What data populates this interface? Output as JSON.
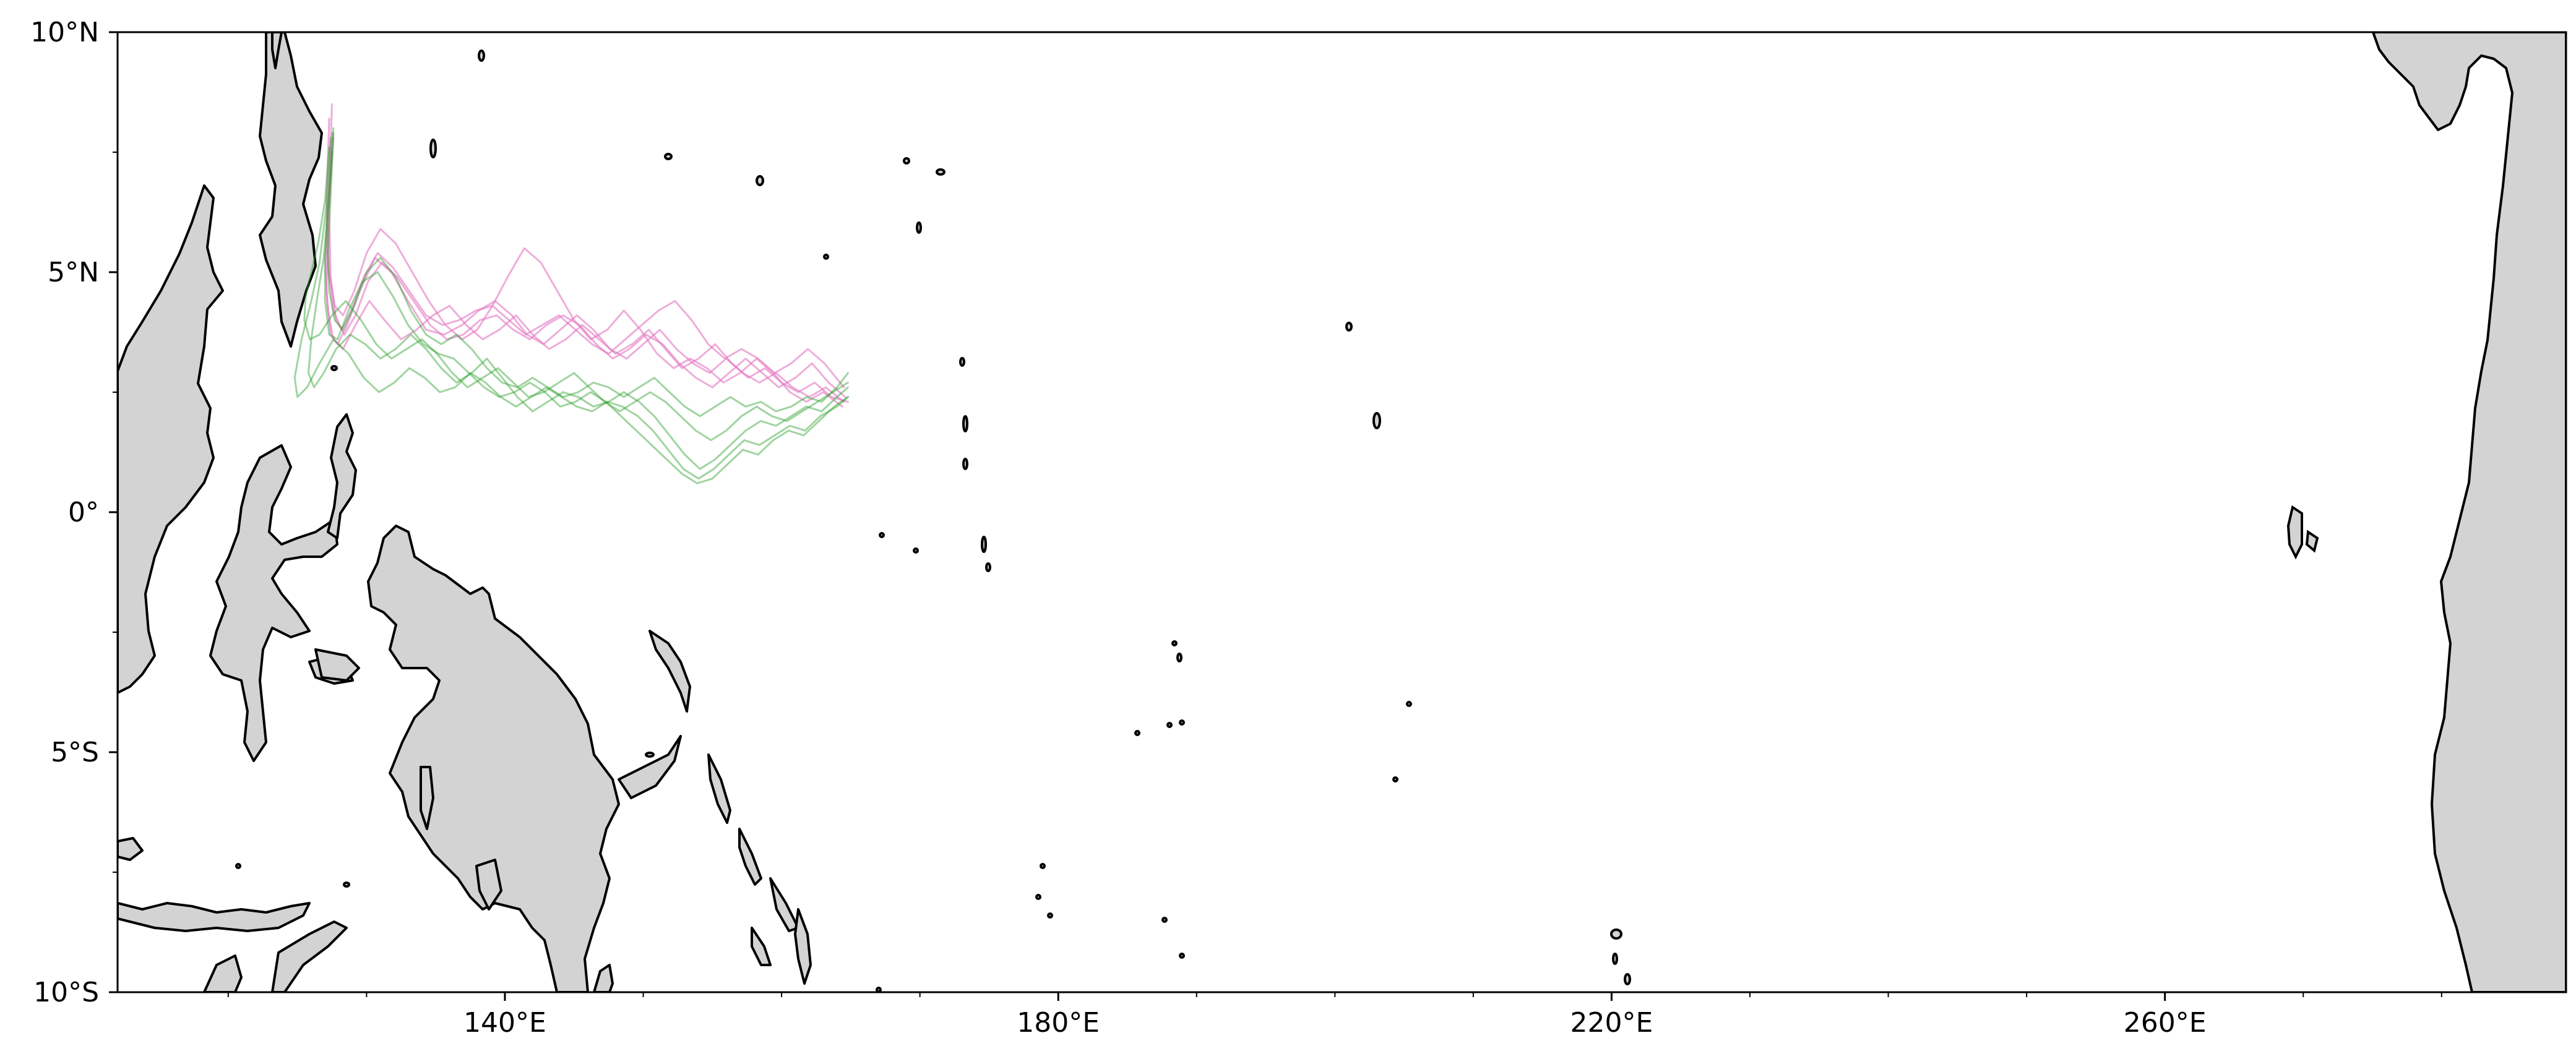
{
  "map": {
    "projection": "PlateCarree",
    "lon_range": [
      112,
      289
    ],
    "lat_range": [
      -10,
      10
    ],
    "land_color": "#d3d3d3",
    "coastline_color": "#000000",
    "background_color": "#ffffff",
    "x_ticks": [
      {
        "lon": 140,
        "label": "140°E"
      },
      {
        "lon": 180,
        "label": "180°E"
      },
      {
        "lon": 220,
        "label": "220°E"
      },
      {
        "lon": 260,
        "label": "260°E"
      }
    ],
    "x_minor_ticks": [
      120,
      130,
      150,
      160,
      170,
      190,
      200,
      210,
      230,
      240,
      250,
      270,
      280
    ],
    "y_ticks": [
      {
        "lat": 10,
        "label": "10°N"
      },
      {
        "lat": 5,
        "label": "5°N"
      },
      {
        "lat": 0,
        "label": "0°"
      },
      {
        "lat": -5,
        "label": "5°S"
      },
      {
        "lat": -10,
        "label": "10°S"
      }
    ],
    "y_minor_ticks": [
      7.5,
      2.5,
      -2.5,
      -7.5
    ]
  },
  "chart_data": {
    "type": "line",
    "series": [
      {
        "color": "#e377c2",
        "opacity": 0.6,
        "lon": [
          127.5,
          127.3,
          127.0,
          127.2,
          127.6,
          128.3,
          129.2,
          130.2,
          131.3,
          132.5,
          133.6,
          134.8,
          136.0,
          137.2,
          138.4,
          139.6,
          140.8,
          142.0,
          143.2,
          144.4,
          145.6,
          146.8,
          148.0,
          149.2,
          150.4,
          151.6,
          152.8,
          154.0,
          155.2,
          156.4,
          157.6,
          158.8,
          160.0,
          161.2,
          162.4,
          163.6,
          164.8
        ],
        "lat": [
          8.5,
          6.8,
          5.2,
          4.2,
          3.6,
          3.4,
          3.9,
          4.4,
          4.0,
          3.6,
          3.8,
          4.1,
          4.3,
          3.9,
          3.6,
          3.8,
          4.1,
          3.7,
          3.4,
          3.6,
          3.9,
          3.6,
          3.3,
          3.5,
          3.8,
          3.4,
          3.0,
          3.2,
          3.5,
          3.1,
          2.8,
          3.0,
          2.7,
          2.5,
          2.7,
          2.4,
          2.3
        ]
      },
      {
        "color": "#e377c2",
        "opacity": 0.6,
        "lon": [
          127.6,
          127.2,
          127.1,
          127.4,
          127.9,
          128.6,
          129.5,
          130.6,
          131.8,
          133.0,
          134.3,
          135.6,
          136.9,
          138.1,
          139.3,
          140.5,
          141.6,
          142.8,
          144.0,
          145.2,
          146.4,
          147.6,
          148.8,
          150.0,
          151.2,
          152.4,
          153.6,
          154.8,
          156.0,
          157.2,
          158.4,
          159.6,
          160.8,
          162.0,
          163.2,
          164.5
        ],
        "lat": [
          7.8,
          6.0,
          4.6,
          3.7,
          3.5,
          3.9,
          4.6,
          5.3,
          5.0,
          4.4,
          3.8,
          3.7,
          3.9,
          4.2,
          4.4,
          4.1,
          3.7,
          3.5,
          3.8,
          4.1,
          3.8,
          3.4,
          3.2,
          3.5,
          3.8,
          3.4,
          3.1,
          2.9,
          3.2,
          2.9,
          2.7,
          2.9,
          2.6,
          2.4,
          2.6,
          2.3
        ]
      },
      {
        "color": "#e377c2",
        "opacity": 0.6,
        "lon": [
          127.4,
          127.2,
          127.3,
          127.7,
          128.3,
          129.1,
          130.0,
          131.0,
          132.1,
          133.3,
          134.5,
          135.7,
          136.9,
          138.0,
          139.1,
          140.2,
          141.4,
          142.6,
          143.8,
          145.0,
          146.2,
          147.4,
          148.6,
          149.8,
          151.0,
          152.2,
          153.4,
          154.6,
          155.8,
          157.0,
          158.2,
          159.4,
          160.6,
          161.8,
          163.0,
          164.4
        ],
        "lat": [
          7.6,
          6.2,
          5.0,
          4.3,
          4.1,
          4.6,
          5.4,
          5.9,
          5.6,
          5.0,
          4.4,
          3.9,
          3.6,
          3.8,
          4.3,
          4.9,
          5.5,
          5.2,
          4.6,
          4.0,
          3.6,
          3.8,
          4.2,
          3.8,
          3.3,
          3.0,
          3.2,
          3.0,
          2.7,
          2.9,
          3.2,
          2.9,
          2.5,
          2.3,
          2.5,
          2.2
        ]
      },
      {
        "color": "#e377c2",
        "opacity": 0.6,
        "lon": [
          127.3,
          127.1,
          127.2,
          127.6,
          128.2,
          128.9,
          129.8,
          130.8,
          131.9,
          133.1,
          134.3,
          135.5,
          136.7,
          137.9,
          139.1,
          140.3,
          141.5,
          142.7,
          143.9,
          145.1,
          146.3,
          147.5,
          148.7,
          149.9,
          151.1,
          152.3,
          153.5,
          154.7,
          155.9,
          157.1,
          158.3,
          159.5,
          160.7,
          161.9,
          163.1,
          164.5
        ],
        "lat": [
          8.2,
          6.5,
          5.1,
          4.2,
          3.8,
          4.2,
          4.9,
          5.4,
          5.1,
          4.6,
          4.1,
          3.9,
          4.0,
          4.2,
          4.3,
          4.0,
          3.7,
          3.9,
          4.1,
          3.8,
          3.5,
          3.3,
          3.6,
          3.9,
          4.2,
          4.4,
          4.0,
          3.5,
          3.2,
          3.4,
          3.2,
          2.9,
          3.1,
          3.4,
          3.1,
          2.6
        ]
      },
      {
        "color": "#e377c2",
        "opacity": 0.6,
        "lon": [
          127.5,
          127.3,
          127.4,
          127.8,
          128.4,
          129.2,
          130.1,
          131.1,
          132.2,
          133.4,
          134.6,
          135.8,
          137.0,
          138.2,
          139.4,
          140.6,
          141.8,
          143.0,
          144.2,
          145.4,
          146.6,
          147.8,
          149.0,
          150.2,
          151.4,
          152.6,
          153.8,
          155.0,
          156.2,
          157.4,
          158.6,
          159.8,
          161.0,
          162.2,
          163.4,
          164.6
        ],
        "lat": [
          7.9,
          6.3,
          4.9,
          4.0,
          3.7,
          4.1,
          4.8,
          5.2,
          4.9,
          4.4,
          3.9,
          3.6,
          3.7,
          4.0,
          4.1,
          3.8,
          3.6,
          3.9,
          4.1,
          3.9,
          3.5,
          3.2,
          3.4,
          3.7,
          3.5,
          3.1,
          2.8,
          2.6,
          2.9,
          3.2,
          2.9,
          2.6,
          2.8,
          3.1,
          2.7,
          2.4
        ]
      },
      {
        "color": "#2ca02c",
        "opacity": 0.45,
        "lon": [
          127.6,
          127.3,
          126.9,
          126.4,
          126.0,
          125.8,
          126.2,
          126.9,
          127.8,
          128.8,
          129.9,
          131.0,
          132.1,
          133.2,
          134.3,
          135.4,
          136.5,
          137.6,
          138.7,
          139.8,
          140.9,
          142.0,
          143.1,
          144.2,
          145.3,
          146.4,
          147.5,
          148.6,
          149.7,
          150.8,
          151.9,
          153.0,
          154.1,
          155.2,
          156.3,
          157.4,
          158.5,
          159.6,
          160.7,
          161.8,
          162.9,
          164.0,
          164.8
        ],
        "lat": [
          8.0,
          6.7,
          5.3,
          4.4,
          3.6,
          2.9,
          2.6,
          2.9,
          3.4,
          3.7,
          3.5,
          3.2,
          3.4,
          3.7,
          3.4,
          3.0,
          2.7,
          2.9,
          3.2,
          2.8,
          2.4,
          2.1,
          2.3,
          2.5,
          2.4,
          2.2,
          2.3,
          2.5,
          2.3,
          2.0,
          1.6,
          1.2,
          0.9,
          1.1,
          1.4,
          1.7,
          1.9,
          1.8,
          2.0,
          2.2,
          2.1,
          2.4,
          2.6
        ]
      },
      {
        "color": "#2ca02c",
        "opacity": 0.45,
        "lon": [
          127.4,
          127.1,
          126.6,
          126.0,
          125.3,
          124.8,
          125.0,
          125.7,
          126.6,
          127.6,
          128.7,
          129.8,
          130.9,
          132.0,
          133.1,
          134.2,
          135.3,
          136.4,
          137.5,
          138.6,
          139.7,
          140.8,
          141.9,
          143.0,
          144.1,
          145.2,
          146.3,
          147.4,
          148.5,
          149.6,
          150.7,
          151.8,
          152.9,
          154.0,
          155.1,
          156.2,
          157.3,
          158.4,
          159.5,
          160.6,
          161.7,
          162.8,
          164.0,
          164.8
        ],
        "lat": [
          7.8,
          6.4,
          5.2,
          4.4,
          3.6,
          2.8,
          2.4,
          2.6,
          3.1,
          3.6,
          3.3,
          2.8,
          2.5,
          2.7,
          3.0,
          2.8,
          2.5,
          2.6,
          2.9,
          2.7,
          2.4,
          2.2,
          2.4,
          2.6,
          2.4,
          2.2,
          2.1,
          2.3,
          2.2,
          2.0,
          1.7,
          1.3,
          0.9,
          0.7,
          0.9,
          1.2,
          1.5,
          1.4,
          1.6,
          1.8,
          1.7,
          2.0,
          2.2,
          2.4
        ]
      },
      {
        "color": "#2ca02c",
        "opacity": 0.45,
        "lon": [
          127.5,
          127.2,
          127.0,
          127.0,
          127.3,
          127.9,
          128.7,
          129.7,
          130.8,
          131.9,
          133.0,
          134.1,
          135.2,
          136.3,
          137.4,
          138.5,
          139.6,
          140.7,
          141.8,
          142.9,
          144.0,
          145.1,
          146.2,
          147.3,
          148.4,
          149.5,
          150.6,
          151.7,
          152.8,
          153.9,
          155.0,
          156.1,
          157.2,
          158.3,
          159.4,
          160.5,
          161.6,
          162.7,
          163.8,
          164.8
        ],
        "lat": [
          7.5,
          6.2,
          5.3,
          4.4,
          3.7,
          3.6,
          4.2,
          4.8,
          5.0,
          4.5,
          3.9,
          3.5,
          3.3,
          3.2,
          2.9,
          2.6,
          2.4,
          2.5,
          2.7,
          2.5,
          2.2,
          2.3,
          2.5,
          2.3,
          2.0,
          1.7,
          1.4,
          1.1,
          0.8,
          0.6,
          0.7,
          1.0,
          1.3,
          1.2,
          1.5,
          1.7,
          1.6,
          1.9,
          2.2,
          2.4
        ]
      },
      {
        "color": "#2ca02c",
        "opacity": 0.45,
        "lon": [
          127.3,
          127.0,
          126.5,
          126.0,
          125.6,
          125.5,
          125.9,
          126.6,
          127.5,
          128.5,
          129.6,
          130.7,
          131.8,
          132.9,
          134.0,
          135.1,
          136.2,
          137.3,
          138.4,
          139.5,
          140.6,
          141.7,
          142.8,
          143.9,
          145.0,
          146.1,
          147.2,
          148.3,
          149.4,
          150.5,
          151.6,
          152.7,
          153.8,
          154.9,
          156.0,
          157.1,
          158.2,
          159.3,
          160.4,
          161.5,
          162.6,
          163.7,
          164.8
        ],
        "lat": [
          7.6,
          6.5,
          5.6,
          5.0,
          4.5,
          4.0,
          3.6,
          3.7,
          4.1,
          4.4,
          4.0,
          3.5,
          3.2,
          3.4,
          3.6,
          3.3,
          2.9,
          2.6,
          2.8,
          3.0,
          2.7,
          2.4,
          2.5,
          2.7,
          2.9,
          2.6,
          2.3,
          2.1,
          2.3,
          2.5,
          2.3,
          2.0,
          1.7,
          1.5,
          1.7,
          2.0,
          2.2,
          2.0,
          1.9,
          2.1,
          2.3,
          2.5,
          2.7
        ]
      },
      {
        "color": "#2ca02c",
        "opacity": 0.45,
        "lon": [
          127.6,
          127.4,
          127.2,
          127.3,
          127.7,
          128.3,
          129.1,
          130.0,
          131.0,
          132.1,
          133.2,
          134.3,
          135.4,
          136.5,
          137.6,
          138.7,
          139.8,
          140.9,
          142.0,
          143.1,
          144.2,
          145.3,
          146.4,
          147.5,
          148.6,
          149.7,
          150.8,
          151.9,
          153.0,
          154.1,
          155.2,
          156.3,
          157.4,
          158.5,
          159.6,
          160.7,
          161.8,
          162.9,
          164.0,
          164.8
        ],
        "lat": [
          7.9,
          6.6,
          5.4,
          4.6,
          4.0,
          3.8,
          4.3,
          5.0,
          5.3,
          4.9,
          4.2,
          3.7,
          3.5,
          3.7,
          3.4,
          3.0,
          2.7,
          2.6,
          2.8,
          2.6,
          2.4,
          2.5,
          2.7,
          2.6,
          2.4,
          2.6,
          2.8,
          2.5,
          2.2,
          2.0,
          2.2,
          2.4,
          2.2,
          2.3,
          2.1,
          2.2,
          2.4,
          2.3,
          2.6,
          2.9
        ]
      }
    ]
  }
}
